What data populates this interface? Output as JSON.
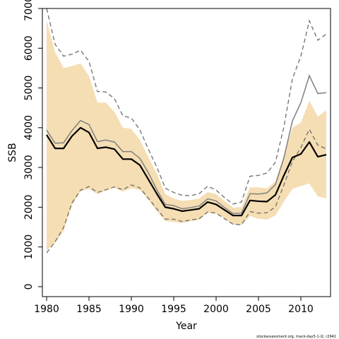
{
  "chart_data": {
    "type": "line",
    "title": "",
    "xlabel": "Year",
    "ylabel": "SSB",
    "xlim": [
      1979.5,
      2013.5
    ],
    "ylim": [
      -250,
      7000
    ],
    "x_ticks": [
      1980,
      1985,
      1990,
      1995,
      2000,
      2005,
      2010
    ],
    "y_ticks": [
      0,
      1000,
      2000,
      3000,
      4000,
      5000,
      6000,
      7000
    ],
    "grid": false,
    "legend": "none",
    "colors": {
      "band": "#f5deb3",
      "estimate": "#000000",
      "alternative": "#808080",
      "alternative_ci": "#6e6e6e"
    },
    "x": [
      1980,
      1981,
      1982,
      1983,
      1984,
      1985,
      1986,
      1987,
      1988,
      1989,
      1990,
      1991,
      1992,
      1993,
      1994,
      1995,
      1996,
      1997,
      1998,
      1999,
      2000,
      2001,
      2002,
      2003,
      2004,
      2005,
      2006,
      2007,
      2008,
      2009,
      2010,
      2011,
      2012,
      2013
    ],
    "series": [
      {
        "role": "estimate",
        "values": [
          3820,
          3480,
          3480,
          3790,
          4000,
          3880,
          3480,
          3510,
          3460,
          3210,
          3210,
          3060,
          2700,
          2340,
          2000,
          1960,
          1900,
          1930,
          1960,
          2130,
          2070,
          1930,
          1790,
          1790,
          2170,
          2150,
          2140,
          2310,
          2800,
          3250,
          3340,
          3640,
          3270,
          3320
        ]
      },
      {
        "role": "band_upper",
        "values": [
          6700,
          5900,
          5500,
          5550,
          5620,
          5300,
          4630,
          4630,
          4400,
          4000,
          3970,
          3700,
          3260,
          2850,
          2330,
          2220,
          2160,
          2180,
          2220,
          2380,
          2330,
          2150,
          1990,
          2000,
          2500,
          2500,
          2470,
          2650,
          3300,
          4000,
          4130,
          4680,
          4280,
          4440
        ]
      },
      {
        "role": "band_lower",
        "values": [
          900,
          1100,
          1400,
          2050,
          2400,
          2460,
          2330,
          2420,
          2490,
          2390,
          2480,
          2430,
          2190,
          1900,
          1650,
          1630,
          1600,
          1650,
          1680,
          1860,
          1840,
          1720,
          1560,
          1550,
          1780,
          1710,
          1690,
          1790,
          2140,
          2460,
          2530,
          2600,
          2270,
          2220
        ]
      },
      {
        "role": "alternative",
        "values": [
          3940,
          3610,
          3620,
          3930,
          4180,
          4080,
          3650,
          3690,
          3640,
          3400,
          3400,
          3230,
          2870,
          2440,
          2070,
          2040,
          1960,
          1990,
          2030,
          2210,
          2160,
          1990,
          1840,
          1850,
          2340,
          2330,
          2360,
          2570,
          3240,
          4170,
          4630,
          5310,
          4860,
          4880
        ]
      },
      {
        "role": "alternative_upper",
        "values": [
          7000,
          6100,
          5800,
          5850,
          5950,
          5670,
          4910,
          4900,
          4730,
          4300,
          4240,
          3950,
          3460,
          3010,
          2480,
          2370,
          2300,
          2290,
          2340,
          2530,
          2430,
          2240,
          2080,
          2130,
          2780,
          2800,
          2860,
          3130,
          4020,
          5230,
          5800,
          6690,
          6200,
          6360
        ]
      },
      {
        "role": "alternative_lower",
        "values": [
          850,
          1130,
          1490,
          2110,
          2430,
          2520,
          2370,
          2440,
          2510,
          2440,
          2560,
          2490,
          2230,
          1960,
          1700,
          1700,
          1640,
          1680,
          1710,
          1880,
          1850,
          1710,
          1570,
          1560,
          1890,
          1850,
          1860,
          2010,
          2560,
          3150,
          3500,
          3960,
          3560,
          3470
        ]
      }
    ],
    "footnote": "stockassessment.org, mack-day5-1-l2, r2942"
  }
}
